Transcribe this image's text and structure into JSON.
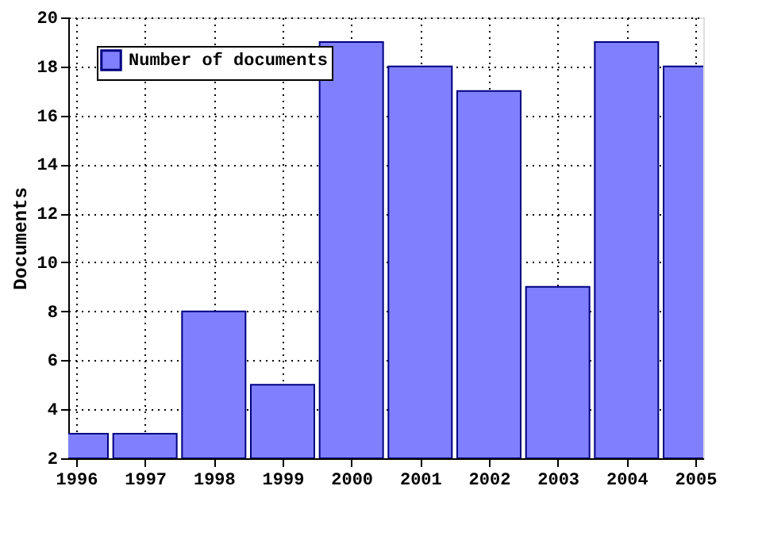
{
  "chart_data": {
    "type": "bar",
    "ylabel": "Documents",
    "x": [
      1996,
      1997,
      1998,
      1999,
      2000,
      2001,
      2002,
      2003,
      2004,
      2005
    ],
    "series": [
      {
        "name": "Number of documents",
        "color": "#8080ff",
        "values": [
          3,
          3,
          8,
          5,
          19,
          18,
          17,
          9,
          19,
          18
        ]
      }
    ],
    "xlim": [
      1996,
      2005
    ],
    "xticks": [
      1996,
      1997,
      1998,
      1999,
      2000,
      2001,
      2002,
      2003,
      2004,
      2005
    ],
    "ylim": [
      2,
      20
    ],
    "yticks": [
      2,
      4,
      6,
      8,
      10,
      12,
      14,
      16,
      18,
      20
    ],
    "grid": true,
    "legend": "top left"
  }
}
